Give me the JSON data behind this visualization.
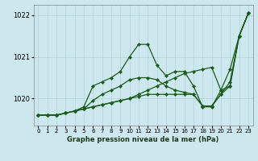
{
  "bg_color": "#cce8ee",
  "grid_color": "#b0d0d8",
  "line_color": "#1a5c1a",
  "marker_color": "#1a5c1a",
  "xlabel": "Graphe pression niveau de la mer (hPa)",
  "ylim": [
    1019.35,
    1022.25
  ],
  "xlim": [
    -0.5,
    23.5
  ],
  "yticks": [
    1020,
    1021,
    1022
  ],
  "xticks": [
    0,
    1,
    2,
    3,
    4,
    5,
    6,
    7,
    8,
    9,
    10,
    11,
    12,
    13,
    14,
    15,
    16,
    17,
    18,
    19,
    20,
    21,
    22,
    23
  ],
  "series": [
    [
      1019.6,
      1019.6,
      1019.6,
      1019.65,
      1019.7,
      1019.75,
      1019.8,
      1019.85,
      1019.9,
      1019.95,
      1020.0,
      1020.1,
      1020.2,
      1020.3,
      1020.4,
      1020.5,
      1020.6,
      1020.65,
      1020.7,
      1020.75,
      1020.2,
      1020.3,
      1021.5,
      1022.05
    ],
    [
      1019.6,
      1019.6,
      1019.6,
      1019.65,
      1019.7,
      1019.8,
      1020.3,
      1020.4,
      1020.5,
      1020.65,
      1021.0,
      1021.3,
      1021.3,
      1020.8,
      1020.55,
      1020.65,
      1020.65,
      1020.3,
      1019.8,
      1019.8,
      1020.2,
      1020.7,
      1021.5,
      1022.05
    ],
    [
      1019.6,
      1019.6,
      1019.6,
      1019.65,
      1019.7,
      1019.75,
      1019.95,
      1020.1,
      1020.2,
      1020.3,
      1020.45,
      1020.5,
      1020.5,
      1020.45,
      1020.3,
      1020.2,
      1020.15,
      1020.1,
      1019.82,
      1019.82,
      1020.1,
      1020.4,
      1021.5,
      1022.05
    ],
    [
      1019.6,
      1019.6,
      1019.6,
      1019.65,
      1019.7,
      1019.75,
      1019.8,
      1019.85,
      1019.9,
      1019.95,
      1020.0,
      1020.05,
      1020.1,
      1020.1,
      1020.1,
      1020.1,
      1020.1,
      1020.1,
      1019.82,
      1019.82,
      1020.1,
      1020.3,
      1021.5,
      1022.05
    ]
  ]
}
